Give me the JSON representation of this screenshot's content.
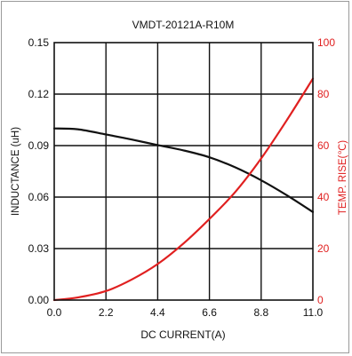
{
  "chart_data": {
    "type": "line",
    "title": "VMDT-20121A-R10M",
    "xlabel": "DC CURRENT(A)",
    "ylabel_left": "INDUCTANCE (uH)",
    "ylabel_right": "TEMP. RISE(℃)",
    "xlim": [
      0,
      11
    ],
    "ylim_left": [
      0,
      0.15
    ],
    "ylim_right": [
      0,
      100
    ],
    "x_ticks": [
      "0.0",
      "2.2",
      "4.4",
      "6.6",
      "8.8",
      "11.0"
    ],
    "y_left_ticks": [
      "0.00",
      "0.03",
      "0.06",
      "0.09",
      "0.12",
      "0.15"
    ],
    "y_right_ticks": [
      "0",
      "20",
      "40",
      "60",
      "80",
      "100"
    ],
    "grid": true,
    "series": [
      {
        "axis": "left",
        "color": "#111111",
        "x": [
          0,
          1,
          2.2,
          3.3,
          4.4,
          5.5,
          6.6,
          7.7,
          8.8,
          9.9,
          11.0
        ],
        "values": [
          0.1,
          0.0995,
          0.0965,
          0.0935,
          0.0903,
          0.0872,
          0.0832,
          0.0773,
          0.0698,
          0.061,
          0.0513
        ]
      },
      {
        "axis": "right",
        "color": "#e02020",
        "x": [
          0,
          1,
          2.2,
          3.3,
          4.4,
          5.5,
          6.6,
          7.7,
          8.8,
          9.9,
          11.0
        ],
        "values": [
          0,
          1,
          3.5,
          8,
          14,
          22,
          31.5,
          42,
          55,
          70,
          86
        ]
      }
    ]
  }
}
